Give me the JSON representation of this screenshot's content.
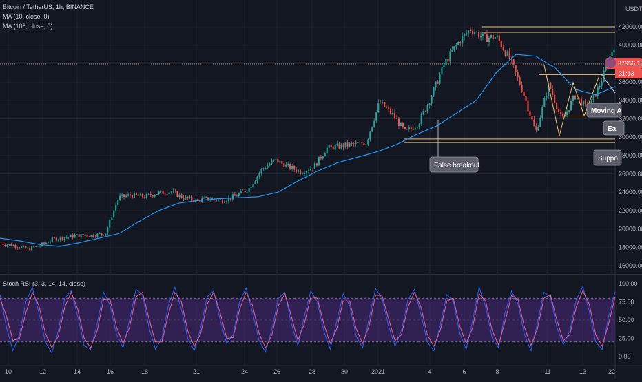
{
  "header": {
    "symbol_line": "Bitcoin / TetherUS, 1h, BINANCE",
    "ma_short_line": "MA (10, close, 0)",
    "ma_long_line": "MA (105, close, 0)",
    "currency": "USDT"
  },
  "price_tag": {
    "price": "37956.15",
    "countdown": "31:13",
    "color": "#ef5350"
  },
  "stoch": {
    "label": "Stoch RSI (3, 3, 14, 14, close)",
    "ticks": [
      "100.00",
      "75.00",
      "50.00",
      "25.00",
      "0.00"
    ],
    "band": [
      20,
      80
    ],
    "k_color": "#2962ff",
    "d_color": "#f06292"
  },
  "annotations": {
    "false_breakout": "False breakout",
    "moving_avg": "Moving A",
    "ea": "Ea",
    "support": "Suppo"
  },
  "colors": {
    "up": "#26a69a",
    "down": "#ef5350",
    "ma_long": "#2196f3",
    "hline": "#f5c36b",
    "band_fill": "#4a2a7a"
  },
  "chart_data": [
    {
      "type": "candlestick",
      "title": "Bitcoin / TetherUS, 1h, BINANCE",
      "x_ticks": [
        "10",
        "12",
        "14",
        "16",
        "18",
        "21",
        "24",
        "26",
        "28",
        "30",
        "2021",
        "4",
        "6",
        "8",
        "11",
        "13",
        "22"
      ],
      "y_ticks": [
        16000,
        18000,
        20000,
        22000,
        24000,
        26000,
        28000,
        30000,
        32000,
        34000,
        36000,
        38000,
        40000,
        42000
      ],
      "ylim": [
        15000,
        44000
      ],
      "price_path": [
        18400,
        18200,
        17800,
        18200,
        18900,
        19100,
        19300,
        19300,
        19500,
        23400,
        23700,
        23500,
        23900,
        24100,
        23400,
        23100,
        23300,
        23100,
        23600,
        24400,
        26500,
        27500,
        26800,
        26200,
        26800,
        28800,
        29000,
        29200,
        29400,
        33800,
        32500,
        30500,
        31500,
        34500,
        38000,
        40200,
        41800,
        40800,
        40900,
        38500,
        35000,
        30500,
        35800,
        31800,
        34500,
        33000,
        36000,
        40000
      ],
      "horizontal_levels": [
        42000,
        41400,
        36800,
        32300,
        29800,
        29400
      ],
      "current_price": 37956.15,
      "series": [
        {
          "name": "MA (105, close, 0)",
          "values": [
            19000,
            18700,
            18300,
            18100,
            18500,
            19000,
            19500,
            20800,
            22000,
            22800,
            23100,
            23300,
            23400,
            23500,
            24000,
            25200,
            26300,
            27200,
            27800,
            28400,
            29200,
            30300,
            31200,
            32600,
            34000,
            37000,
            39000,
            38800,
            37500,
            35200,
            34600,
            35500
          ]
        }
      ]
    },
    {
      "type": "line",
      "title": "Stoch RSI (3, 3, 14, 14, close)",
      "ylim": [
        0,
        100
      ],
      "y_ticks": [
        0,
        25,
        50,
        75,
        100
      ],
      "band": [
        20,
        80
      ],
      "series": [
        {
          "name": "K",
          "values": [
            85,
            40,
            8,
            30,
            75,
            95,
            60,
            20,
            5,
            35,
            80,
            90,
            55,
            15,
            10,
            45,
            88,
            70,
            30,
            12,
            50,
            92,
            85,
            40,
            10,
            25,
            70,
            95,
            65,
            25,
            8,
            40,
            82,
            90,
            50,
            18,
            30,
            75,
            94,
            60,
            22,
            6,
            38,
            80,
            88,
            45,
            15,
            55,
            90,
            75,
            35,
            10,
            48,
            86,
            70,
            28,
            12,
            52,
            93,
            80,
            42,
            14,
            36,
            78,
            92,
            58,
            20,
            8,
            44,
            85,
            76,
            32,
            10,
            50,
            95,
            68,
            26,
            12,
            60,
            90,
            72,
            30,
            8,
            46,
            88,
            82,
            40,
            16,
            35,
            78,
            96,
            62,
            20,
            10,
            55,
            89
          ]
        },
        {
          "name": "D",
          "values": [
            80,
            55,
            22,
            25,
            60,
            88,
            70,
            32,
            12,
            28,
            68,
            88,
            65,
            25,
            12,
            35,
            78,
            78,
            40,
            18,
            40,
            82,
            88,
            52,
            20,
            20,
            58,
            88,
            75,
            35,
            14,
            32,
            72,
            88,
            60,
            25,
            26,
            65,
            88,
            70,
            32,
            12,
            30,
            70,
            86,
            55,
            22,
            45,
            82,
            80,
            45,
            18,
            38,
            76,
            76,
            38,
            18,
            42,
            84,
            84,
            52,
            22,
            30,
            68,
            88,
            68,
            30,
            14,
            36,
            76,
            80,
            42,
            18,
            40,
            86,
            76,
            36,
            16,
            48,
            84,
            78,
            40,
            15,
            38,
            80,
            85,
            50,
            22,
            30,
            68,
            90,
            72,
            30,
            14,
            45,
            82
          ]
        }
      ]
    }
  ]
}
